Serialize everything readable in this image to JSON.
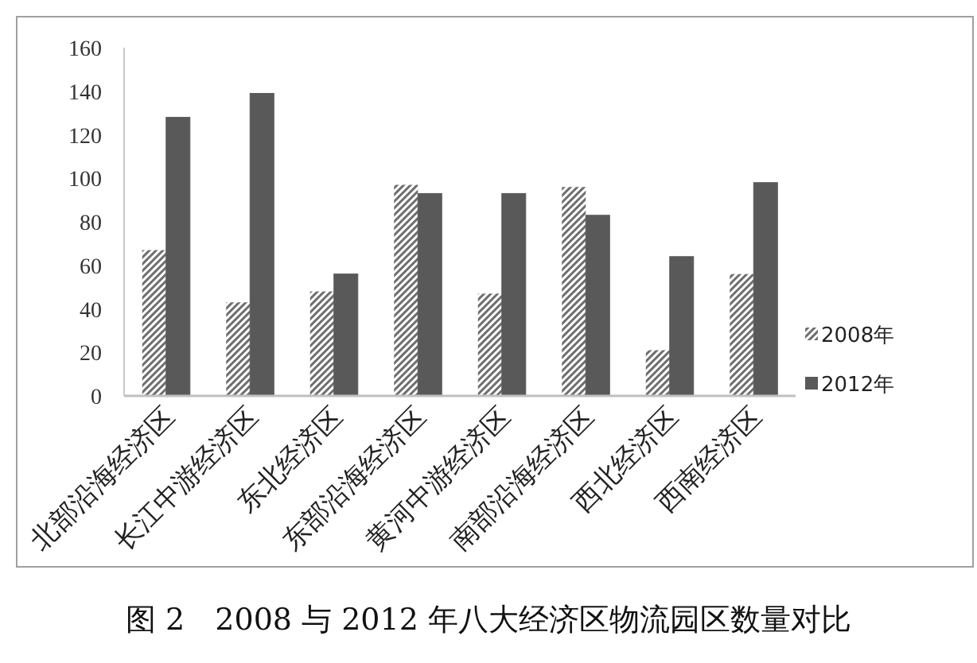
{
  "chart_data": {
    "type": "bar",
    "categories": [
      "北部沿海经济区",
      "长江中游经济区",
      "东北经济区",
      "东部沿海经济区",
      "黄河中游经济区",
      "南部沿海经济区",
      "西北经济区",
      "西南经济区"
    ],
    "series": [
      {
        "name": "2008年",
        "color": "#6e6e6e",
        "values": [
          67,
          43,
          48,
          97,
          47,
          96,
          21,
          56
        ]
      },
      {
        "name": "2012年",
        "color": "#595959",
        "values": [
          128,
          139,
          56,
          93,
          93,
          83,
          64,
          98
        ]
      }
    ],
    "ylim": [
      0,
      160
    ],
    "yticks": [
      0,
      20,
      40,
      60,
      80,
      100,
      120,
      140,
      160
    ],
    "grid": false,
    "legend": "right",
    "annotations": [
      "图 2　2008 与 2012 年八大经济区物流园区数量对比"
    ]
  }
}
